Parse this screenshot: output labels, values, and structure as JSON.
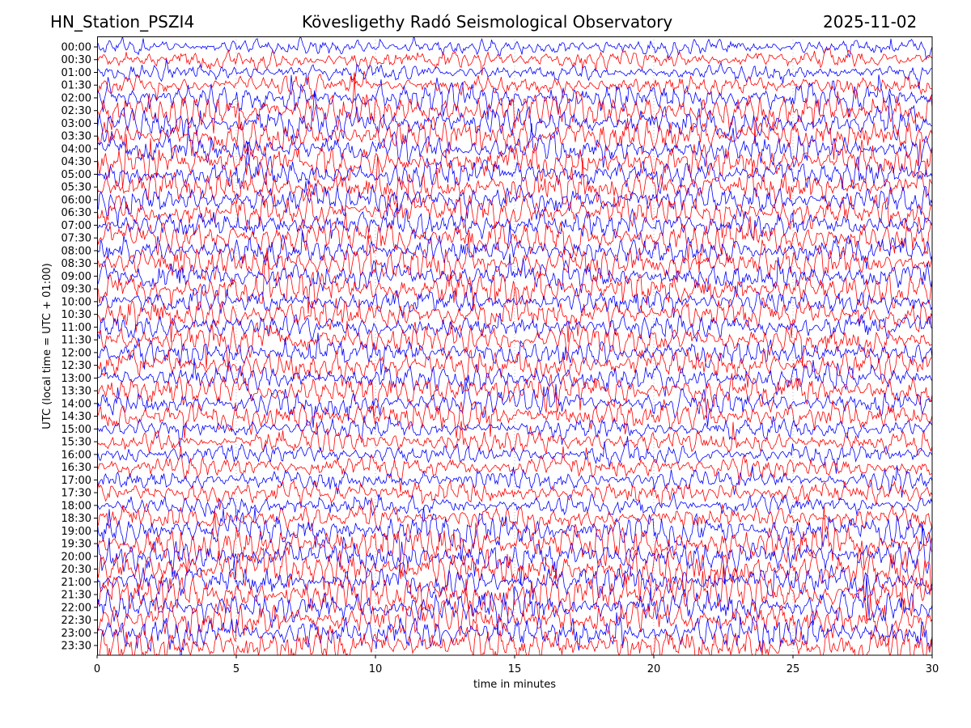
{
  "header": {
    "station": "HN_Station_PSZI4",
    "observatory": "Kövesligethy Radó Seismological Observatory",
    "date": "2025-11-02"
  },
  "chart_data": {
    "type": "line",
    "title": "Kövesligethy Radó Seismological Observatory",
    "xlabel": "time in minutes",
    "ylabel": "UTC (local time = UTC + 01:00)",
    "xlim": [
      0,
      30
    ],
    "xticks": [
      "0",
      "5",
      "10",
      "15",
      "20",
      "25",
      "30"
    ],
    "xtick_values": [
      0,
      5,
      10,
      15,
      20,
      25,
      30
    ],
    "row_labels": [
      "00:00",
      "00:30",
      "01:00",
      "01:30",
      "02:00",
      "02:30",
      "03:00",
      "03:30",
      "04:00",
      "04:30",
      "05:00",
      "05:30",
      "06:00",
      "06:30",
      "07:00",
      "07:30",
      "08:00",
      "08:30",
      "09:00",
      "09:30",
      "10:00",
      "10:30",
      "11:00",
      "11:30",
      "12:00",
      "12:30",
      "13:00",
      "13:30",
      "14:00",
      "14:30",
      "15:00",
      "15:30",
      "16:00",
      "16:30",
      "17:00",
      "17:30",
      "18:00",
      "18:30",
      "19:00",
      "19:30",
      "20:00",
      "20:30",
      "21:00",
      "21:30",
      "22:00",
      "22:30",
      "23:00",
      "23:30"
    ],
    "series_colors": [
      "#0000ff",
      "#ff0000"
    ],
    "grid": "vertical dotted at each x tick"
  }
}
